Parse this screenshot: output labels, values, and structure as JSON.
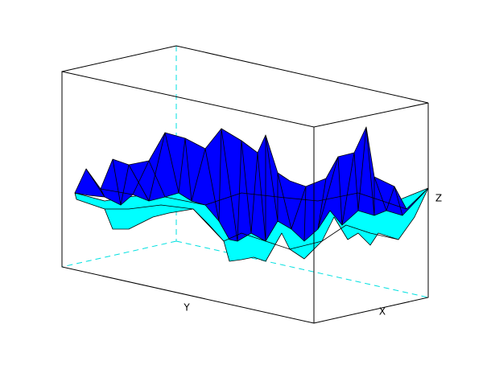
{
  "chart_data": {
    "type": "surface",
    "xlabel": "X",
    "ylabel": "Y",
    "zlabel": "Z"
  }
}
